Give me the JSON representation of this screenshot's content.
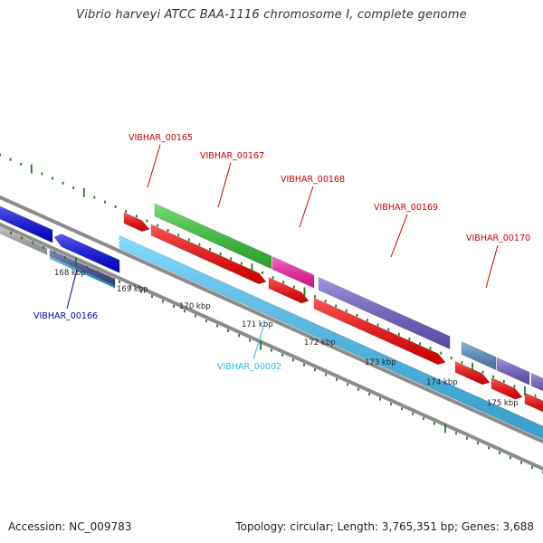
{
  "title": "Vibrio harveyi ATCC BAA-1116 chromosome I, complete genome",
  "footer": {
    "accession": "Accession: NC_009783",
    "summary": "Topology: circular; Length: 3,765,351 bp; Genes: 3,688"
  },
  "colors": {
    "background": "#ffffff",
    "backbone": "#8c8c8c",
    "tick_mark": "#1e7a1e",
    "label_forward": "#cc0000",
    "label_reverse_blue": "#0000b0",
    "label_reverse_cyan": "#2fb8e0",
    "cds": "#ff0000",
    "gene_green": "#33cc33",
    "gene_magenta": "#ff1aa8",
    "gene_purple": "#6f5fd0",
    "gene_steel": "#5b8fc8",
    "gene_blue": "#0000ee",
    "gene_cyan": "#44c8ff"
  },
  "ticks": [
    "168 kbp",
    "169 kbp",
    "170 kbp",
    "171 kbp",
    "172 kbp",
    "173 kbp",
    "174 kbp",
    "175 kbp"
  ],
  "gene_labels": [
    {
      "id": "g165",
      "text": "VIBHAR_00165",
      "color": "label_forward"
    },
    {
      "id": "g167",
      "text": "VIBHAR_00167",
      "color": "label_forward"
    },
    {
      "id": "g168",
      "text": "VIBHAR_00168",
      "color": "label_forward"
    },
    {
      "id": "g169",
      "text": "VIBHAR_00169",
      "color": "label_forward"
    },
    {
      "id": "g170",
      "text": "VIBHAR_00170",
      "color": "label_forward"
    },
    {
      "id": "g166",
      "text": "VIBHAR_00166",
      "color": "label_reverse_blue"
    },
    {
      "id": "g002",
      "text": "VIBHAR_00002",
      "color": "label_reverse_cyan"
    }
  ]
}
